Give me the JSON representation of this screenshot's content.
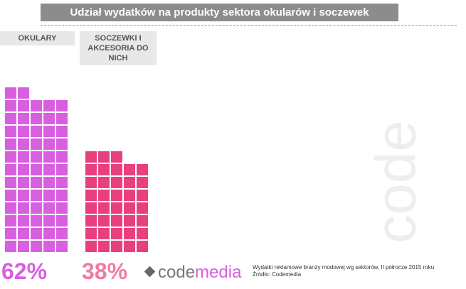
{
  "chart_data": {
    "type": "waffle",
    "title": "Udział wydatków na produkty sektora okularów i soczewek",
    "categories": [
      "OKULARY",
      "SOCZEWKI I AKCESORIA DO NICH"
    ],
    "values": [
      62,
      38
    ],
    "value_labels": [
      "62%",
      "38%"
    ],
    "colors": [
      "#d85fe0",
      "#e8407f"
    ],
    "label_colors": [
      "#d85fe0",
      "#f07aa6"
    ],
    "logo": [
      "code",
      "media"
    ],
    "watermark": "code",
    "note": "Wydatki reklamowe branży modowej wg sektorów, II półrocze 2015 roku",
    "source": "Źródło: Codemedia"
  }
}
